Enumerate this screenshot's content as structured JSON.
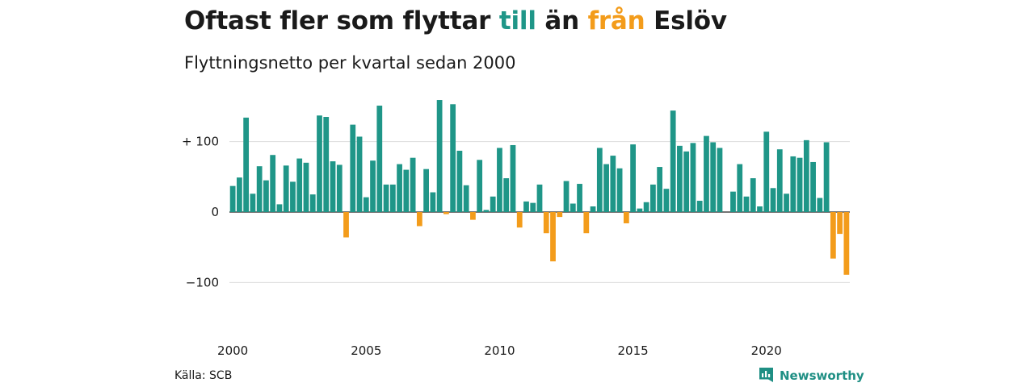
{
  "title": {
    "part1": "Oftast fler som flyttar ",
    "word_in": "till",
    "part2": " än ",
    "word_out": "från",
    "part3": " Eslöv"
  },
  "subtitle": "Flyttningsnetto per kvartal sedan 2000",
  "source": "Källa: SCB",
  "brand": {
    "name": "Newsworthy",
    "icon": "newsworthy-logo-icon"
  },
  "colors": {
    "positive": "#1f9688",
    "negative": "#f39c1b",
    "grid": "#dddddd",
    "text": "#1a1a1a"
  },
  "chart_data": {
    "type": "bar",
    "title": "",
    "xlabel": "",
    "ylabel": "",
    "x_start": "2000 Q1",
    "ylim": [
      -130,
      170
    ],
    "yticks": [
      {
        "value": 100,
        "label": "+ 100"
      },
      {
        "value": 0,
        "label": "0"
      },
      {
        "value": -100,
        "label": "−100"
      }
    ],
    "xticks": [
      {
        "label": "2000",
        "index": 0
      },
      {
        "label": "2005",
        "index": 20
      },
      {
        "label": "2010",
        "index": 40
      },
      {
        "label": "2015",
        "index": 60
      },
      {
        "label": "2020",
        "index": 80
      }
    ],
    "grid": true,
    "values": [
      37,
      49,
      134,
      26,
      65,
      45,
      81,
      11,
      66,
      43,
      76,
      70,
      25,
      137,
      135,
      72,
      67,
      -36,
      124,
      107,
      21,
      73,
      151,
      39,
      39,
      68,
      60,
      77,
      -20,
      61,
      28,
      159,
      -3,
      153,
      87,
      38,
      -11,
      74,
      3,
      22,
      91,
      48,
      95,
      -22,
      15,
      13,
      39,
      -30,
      -70,
      -7,
      44,
      12,
      40,
      -30,
      8,
      91,
      68,
      80,
      62,
      -16,
      96,
      5,
      14,
      39,
      64,
      33,
      144,
      94,
      86,
      98,
      16,
      108,
      99,
      91,
      0,
      29,
      68,
      22,
      48,
      8,
      114,
      34,
      89,
      26,
      79,
      77,
      102,
      71,
      20,
      99,
      -66,
      -31,
      -89
    ]
  }
}
